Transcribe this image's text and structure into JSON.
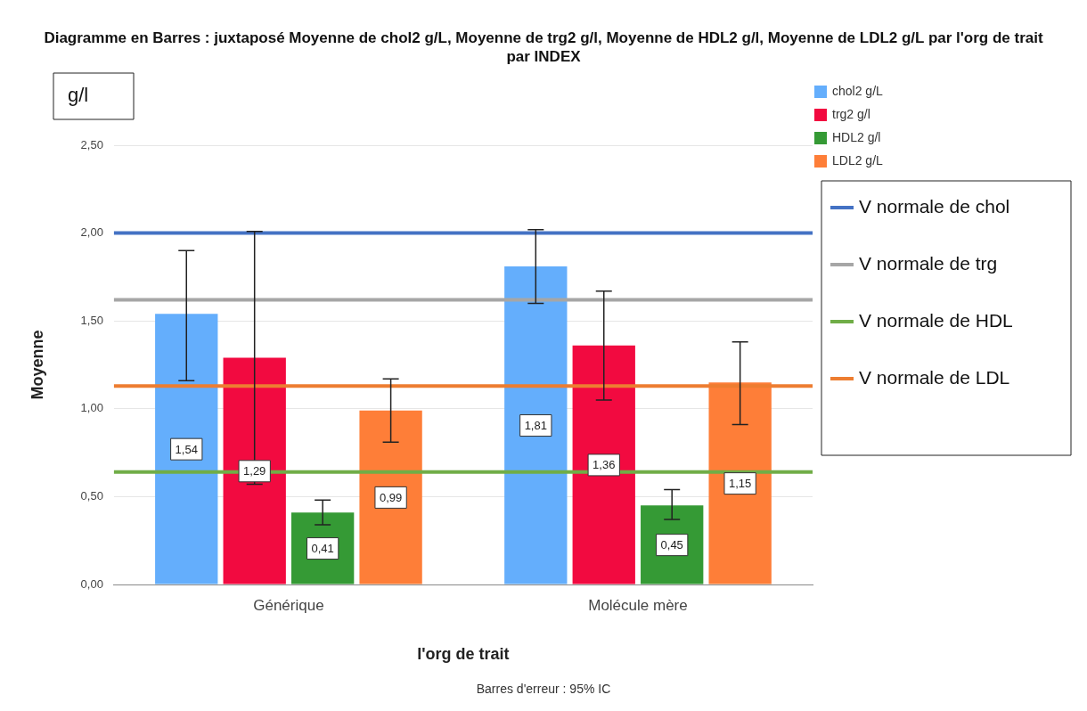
{
  "chart_data": {
    "type": "bar",
    "title": "Diagramme en Barres : juxtaposé Moyenne de chol2 g/L, Moyenne de trg2 g/l, Moyenne de HDL2 g/l, Moyenne de LDL2 g/L par l'org de trait par INDEX",
    "xlabel": "l'org de trait",
    "ylabel": "Moyenne",
    "annotations": [
      "g/l",
      "Barres d'erreur : 95% IC"
    ],
    "categories": [
      "Générique",
      "Molécule mère"
    ],
    "series": [
      {
        "name": "chol2 g/L",
        "color": "#64aefc",
        "values": [
          1.54,
          1.81
        ],
        "value_labels": [
          "1,54",
          "1,81"
        ],
        "errors": [
          [
            1.16,
            1.9
          ],
          [
            1.6,
            2.02
          ]
        ]
      },
      {
        "name": "trg2 g/l",
        "color": "#f20a40",
        "values": [
          1.29,
          1.36
        ],
        "value_labels": [
          "1,29",
          "1,36"
        ],
        "errors": [
          [
            0.57,
            2.01
          ],
          [
            1.05,
            1.67
          ]
        ]
      },
      {
        "name": "HDL2 g/l",
        "color": "#359a35",
        "values": [
          0.41,
          0.45
        ],
        "value_labels": [
          "0,41",
          "0,45"
        ],
        "errors": [
          [
            0.34,
            0.48
          ],
          [
            0.37,
            0.54
          ]
        ]
      },
      {
        "name": "LDL2 g/L",
        "color": "#fe7e38",
        "values": [
          0.99,
          1.15
        ],
        "value_labels": [
          "0,99",
          "1,15"
        ],
        "errors": [
          [
            0.81,
            1.17
          ],
          [
            0.91,
            1.38
          ]
        ]
      }
    ],
    "ylim": [
      0,
      2.5
    ],
    "yticks": [
      {
        "value": 0,
        "label": "0,00"
      },
      {
        "value": 0.5,
        "label": "0,50"
      },
      {
        "value": 1,
        "label": "1,00"
      },
      {
        "value": 1.5,
        "label": "1,50"
      },
      {
        "value": 2,
        "label": "2,00"
      },
      {
        "value": 2.5,
        "label": "2,50"
      }
    ],
    "ref_lines": [
      {
        "axis": "y",
        "value": 2.0,
        "label": "V normale de chol",
        "color": "#4472c4"
      },
      {
        "axis": "y",
        "value": 1.62,
        "label": "V normale de trg",
        "color": "#a6a6a6"
      },
      {
        "axis": "y",
        "value": 0.64,
        "label": "V normale de HDL",
        "color": "#70ad47"
      },
      {
        "axis": "y",
        "value": 1.13,
        "label": "V normale de LDL",
        "color": "#ed7d31"
      }
    ],
    "grid": "y",
    "legend": "top right"
  }
}
